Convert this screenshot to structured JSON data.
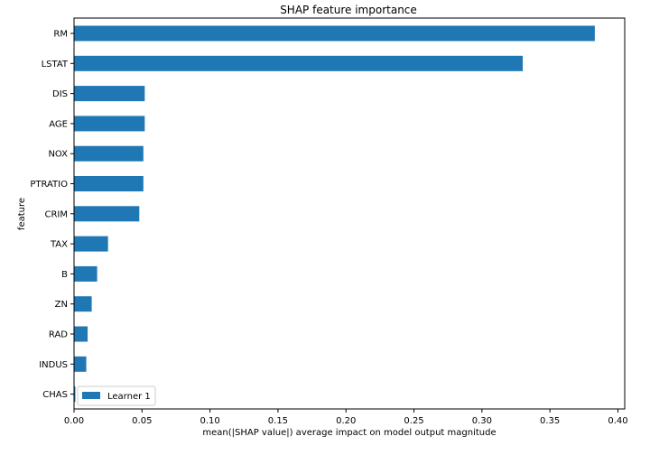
{
  "chart_data": {
    "type": "bar",
    "orientation": "horizontal",
    "title": "SHAP feature importance",
    "xlabel": "mean(|SHAP value|) average impact on model output magnitude",
    "ylabel": "feature",
    "xlim": [
      0,
      0.405
    ],
    "xticks": [
      "0.00",
      "0.05",
      "0.10",
      "0.15",
      "0.20",
      "0.25",
      "0.30",
      "0.35",
      "0.40"
    ],
    "xtick_values": [
      0,
      0.05,
      0.1,
      0.15,
      0.2,
      0.25,
      0.3,
      0.35,
      0.4
    ],
    "categories": [
      "RM",
      "LSTAT",
      "DIS",
      "AGE",
      "NOX",
      "PTRATIO",
      "CRIM",
      "TAX",
      "B",
      "ZN",
      "RAD",
      "INDUS",
      "CHAS"
    ],
    "series": [
      {
        "name": "Learner 1",
        "color": "#1f77b4",
        "values": [
          0.383,
          0.33,
          0.052,
          0.052,
          0.051,
          0.051,
          0.048,
          0.025,
          0.017,
          0.013,
          0.01,
          0.009,
          0.001
        ]
      }
    ],
    "grid": false,
    "legend_position": "lower-left"
  }
}
